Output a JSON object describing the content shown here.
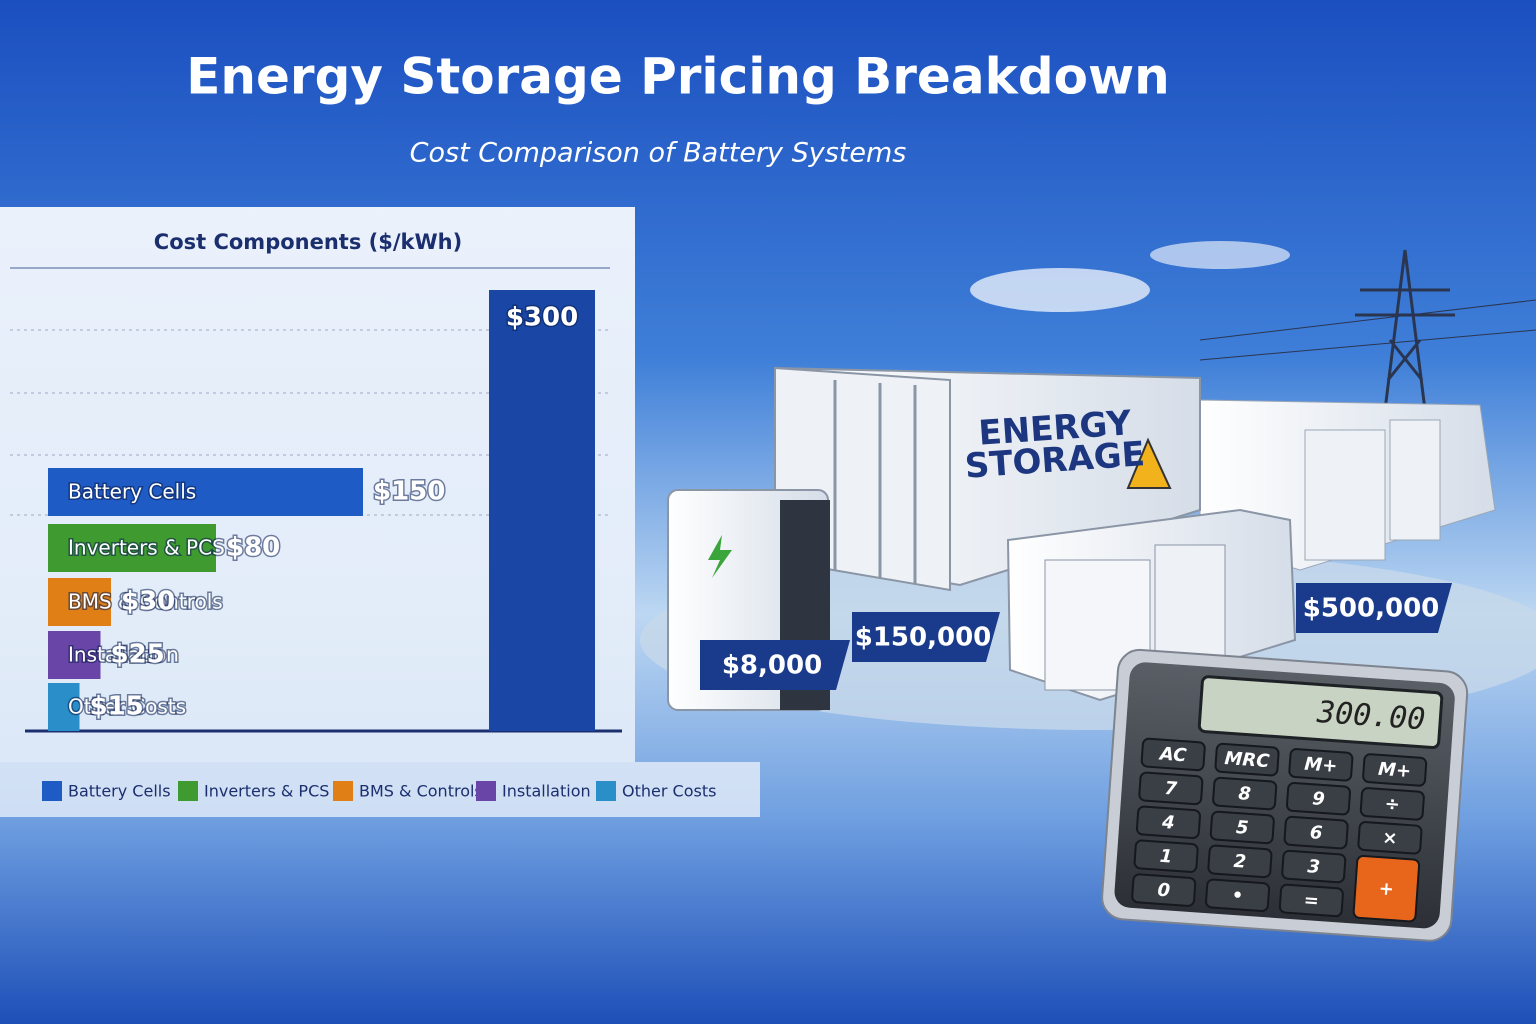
{
  "header": {
    "title": "Energy Storage Pricing Breakdown",
    "subtitle": "Cost Comparison of Battery Systems"
  },
  "chart_data": {
    "type": "bar",
    "orientation": "horizontal",
    "title": "Cost Components ($/kWh)",
    "categories": [
      "Battery Cells",
      "Inverters & PCS",
      "BMS & Controls",
      "Installation",
      "Other Costs"
    ],
    "values": [
      150,
      80,
      30,
      25,
      15
    ],
    "value_labels": [
      "$150",
      "$80",
      "$30",
      "$25",
      "$15"
    ],
    "colors": [
      "#1f5bc4",
      "#3f9a2f",
      "#e07f16",
      "#6a45a8",
      "#2a8ec8"
    ],
    "total": {
      "value": 300,
      "label": "$300",
      "color": "#1a47a6"
    },
    "legend": true
  },
  "illustration": {
    "container_label": [
      "ENERGY",
      "STORAGE"
    ],
    "price_tags": [
      "$8,000",
      "$150,000",
      "$500,000"
    ],
    "calculator": {
      "display": "300.00",
      "keys": [
        [
          "AC",
          "MRC",
          "M+",
          "M+"
        ],
        [
          "7",
          "8",
          "9",
          "÷"
        ],
        [
          "4",
          "5",
          "6",
          "×"
        ],
        [
          "1",
          "2",
          "3"
        ],
        [
          "0",
          "•",
          "=",
          "+"
        ]
      ]
    }
  }
}
